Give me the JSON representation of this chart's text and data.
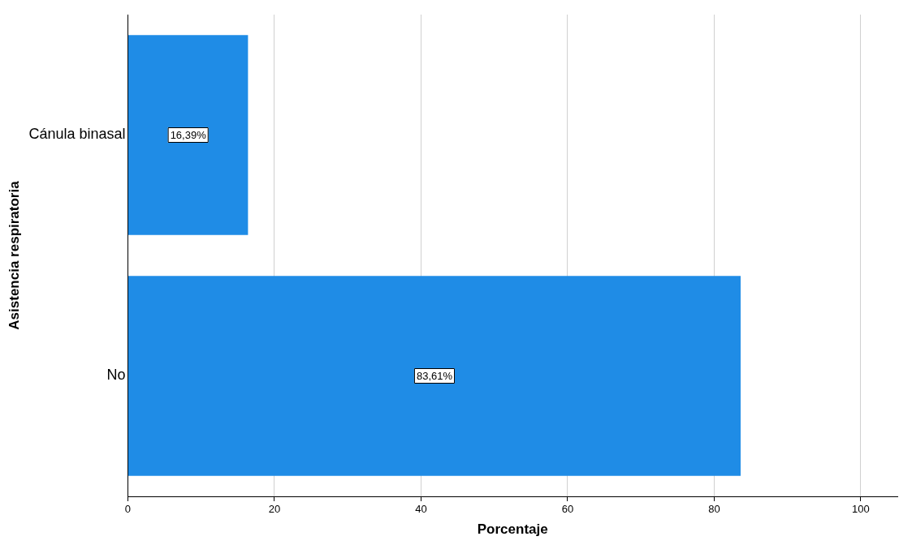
{
  "chart_data": {
    "type": "bar",
    "orientation": "horizontal",
    "xlabel": "Porcentaje",
    "ylabel": "Asistencia respiratoria",
    "categories": [
      "Cánula binasal",
      "No"
    ],
    "series": [
      {
        "color": "#1f8ce6",
        "values": [
          16.39,
          83.61
        ],
        "value_labels": [
          "16,39%",
          "83,61%"
        ]
      }
    ],
    "xlim": [
      0,
      105
    ],
    "xticks": [
      0,
      20,
      40,
      60,
      80,
      100
    ],
    "grid": "x",
    "legend": false
  }
}
